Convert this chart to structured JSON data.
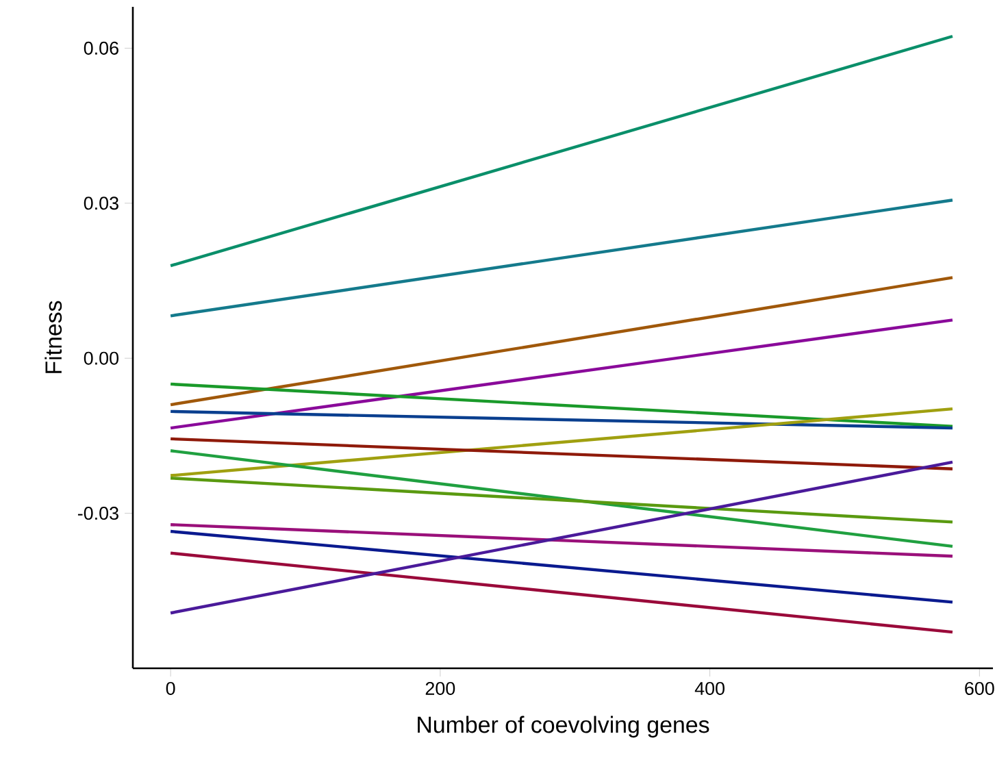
{
  "chart_data": {
    "type": "line",
    "xlabel": "Number of coevolving genes",
    "ylabel": "Fitness",
    "x": [
      0,
      580
    ],
    "xlim": [
      -28,
      610
    ],
    "ylim": [
      -0.06,
      0.068
    ],
    "xticks": [
      0,
      200,
      400,
      600
    ],
    "yticks": [
      {
        "value": 0.06,
        "label": "0.06"
      },
      {
        "value": 0.03,
        "label": "0.03"
      },
      {
        "value": 0.0,
        "label": "0.00"
      },
      {
        "value": -0.03,
        "label": "-0.03"
      }
    ],
    "grid": false,
    "marker": "none",
    "line_style": "solid",
    "series": [
      {
        "color": "#0a8f6a",
        "values": [
          0.0179,
          0.0623
        ]
      },
      {
        "color": "#147a8c",
        "values": [
          0.0082,
          0.0306
        ]
      },
      {
        "color": "#a0580a",
        "values": [
          -0.009,
          0.0156
        ]
      },
      {
        "color": "#8a0a9a",
        "values": [
          -0.0135,
          0.0074
        ]
      },
      {
        "color": "#1a9a2a",
        "values": [
          -0.005,
          -0.0132
        ]
      },
      {
        "color": "#0a3f8f",
        "values": [
          -0.0103,
          -0.0135
        ]
      },
      {
        "color": "#a0a010",
        "values": [
          -0.0227,
          -0.0098
        ]
      },
      {
        "color": "#8f1a0a",
        "values": [
          -0.0156,
          -0.0214
        ]
      },
      {
        "color": "#20a040",
        "values": [
          -0.0179,
          -0.0364
        ]
      },
      {
        "color": "#5a9a10",
        "values": [
          -0.0232,
          -0.0317
        ]
      },
      {
        "color": "#9a107a",
        "values": [
          -0.0322,
          -0.0383
        ]
      },
      {
        "color": "#0a1a8f",
        "values": [
          -0.0335,
          -0.0472
        ]
      },
      {
        "color": "#9a0a3a",
        "values": [
          -0.0377,
          -0.053
        ]
      },
      {
        "color": "#4a1a9a",
        "values": [
          -0.0493,
          -0.0201
        ]
      }
    ]
  }
}
